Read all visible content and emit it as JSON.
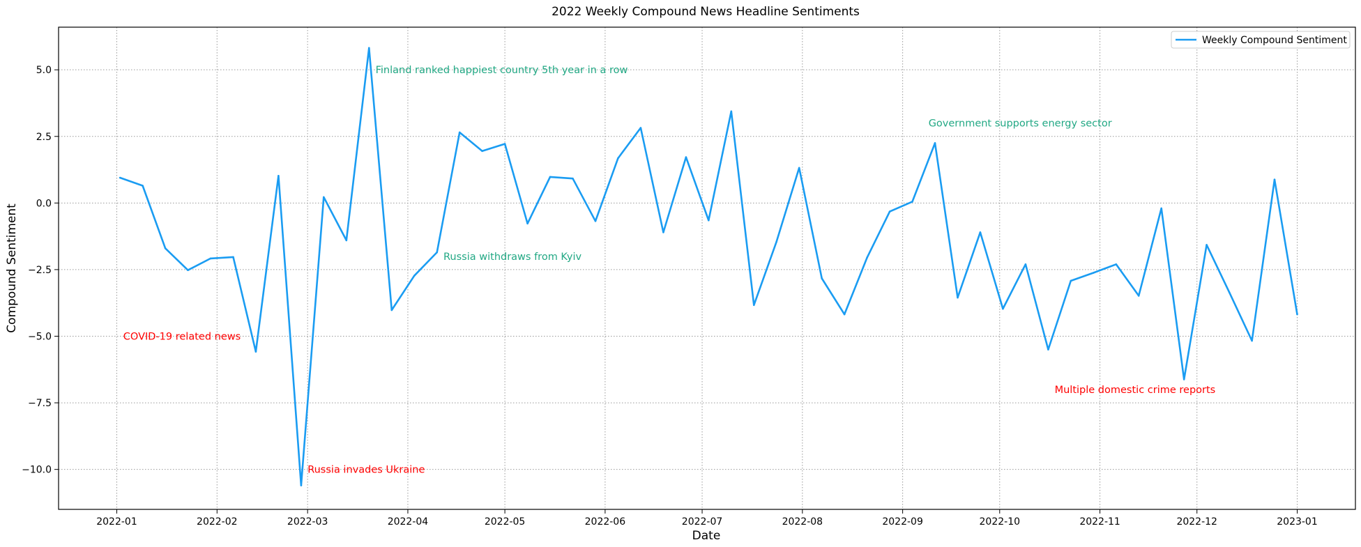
{
  "chart_data": {
    "type": "line",
    "title": "2022 Weekly Compound News Headline Sentiments",
    "xlabel": "Date",
    "ylabel": "Compound Sentiment",
    "xlim": [
      "2021-12-14",
      "2023-01-19"
    ],
    "ylim": [
      -11.5,
      6.6
    ],
    "grid": true,
    "grid_style": "dotted",
    "legend_position": "top-right",
    "x_ticks": [
      "2022-01",
      "2022-02",
      "2022-03",
      "2022-04",
      "2022-05",
      "2022-06",
      "2022-07",
      "2022-08",
      "2022-09",
      "2022-10",
      "2022-11",
      "2022-12",
      "2023-01"
    ],
    "y_ticks": [
      {
        "value": 5.0,
        "label": "5.0"
      },
      {
        "value": 2.5,
        "label": "2.5"
      },
      {
        "value": 0.0,
        "label": "0.0"
      },
      {
        "value": -2.5,
        "label": "−2.5"
      },
      {
        "value": -5.0,
        "label": "−5.0"
      },
      {
        "value": -7.5,
        "label": "−7.5"
      },
      {
        "value": -10.0,
        "label": "−10.0"
      }
    ],
    "series": [
      {
        "name": "Weekly Compound Sentiment",
        "color": "#1a9cf2",
        "x": [
          "2022-01-02",
          "2022-01-09",
          "2022-01-16",
          "2022-01-23",
          "2022-01-30",
          "2022-02-06",
          "2022-02-13",
          "2022-02-20",
          "2022-02-27",
          "2022-03-06",
          "2022-03-13",
          "2022-03-20",
          "2022-03-27",
          "2022-04-03",
          "2022-04-10",
          "2022-04-17",
          "2022-04-24",
          "2022-05-01",
          "2022-05-08",
          "2022-05-15",
          "2022-05-22",
          "2022-05-29",
          "2022-06-05",
          "2022-06-12",
          "2022-06-19",
          "2022-06-26",
          "2022-07-03",
          "2022-07-10",
          "2022-07-17",
          "2022-07-24",
          "2022-07-31",
          "2022-08-07",
          "2022-08-14",
          "2022-08-21",
          "2022-08-28",
          "2022-09-04",
          "2022-09-11",
          "2022-09-18",
          "2022-09-25",
          "2022-10-02",
          "2022-10-09",
          "2022-10-16",
          "2022-10-23",
          "2022-10-30",
          "2022-11-06",
          "2022-11-13",
          "2022-11-20",
          "2022-11-27",
          "2022-12-04",
          "2022-12-11",
          "2022-12-18",
          "2022-12-25",
          "2023-01-01"
        ],
        "y": [
          0.95,
          0.65,
          -1.7,
          -2.52,
          -2.08,
          -2.03,
          -5.58,
          1.02,
          -10.6,
          0.22,
          -1.4,
          5.82,
          -4.02,
          -2.73,
          -1.85,
          2.65,
          1.95,
          2.22,
          -0.77,
          0.98,
          0.92,
          -0.68,
          1.68,
          2.82,
          -1.1,
          1.72,
          -0.65,
          3.44,
          -3.83,
          -1.45,
          1.32,
          -2.83,
          -4.18,
          -2.05,
          -0.32,
          0.05,
          2.25,
          -3.55,
          -1.1,
          -3.97,
          -2.3,
          -5.5,
          -2.92,
          -2.62,
          -2.3,
          -3.48,
          -0.2,
          -6.62,
          -1.57,
          -3.35,
          -5.17,
          0.88,
          -4.18
        ]
      }
    ],
    "annotations": [
      {
        "text": "COVID-19 related news",
        "x": "2022-01-03",
        "y": -5.0,
        "color": "#ff0000"
      },
      {
        "text": "Russia invades Ukraine",
        "x": "2022-03-01",
        "y": -10.0,
        "color": "#ff0000"
      },
      {
        "text": "Finland ranked happiest country 5th year in a row",
        "x": "2022-03-22",
        "y": 5.0,
        "color": "#22a884"
      },
      {
        "text": "Russia withdraws from Kyiv",
        "x": "2022-04-12",
        "y": -2.0,
        "color": "#22a884"
      },
      {
        "text": "Government supports energy sector",
        "x": "2022-09-09",
        "y": 3.0,
        "color": "#22a884"
      },
      {
        "text": "Multiple domestic crime reports",
        "x": "2022-10-18",
        "y": -7.0,
        "color": "#ff0000"
      }
    ]
  }
}
